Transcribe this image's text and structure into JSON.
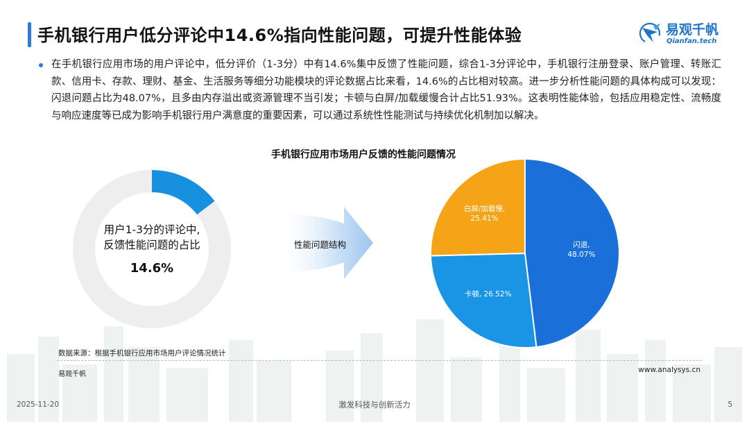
{
  "header": {
    "title": "手机银行用户低分评论中14.6%指向性能问题，可提升性能体验",
    "logo_cn": "易观千帆",
    "logo_en": "Qianfan.tech"
  },
  "body": {
    "paragraph": "在手机银行应用市场的用户评论中，低分评价（1-3分）中有14.6%集中反馈了性能问题，综合1-3分评论中，手机银行注册登录、账户管理、转账汇款、信用卡、存款、理财、基金、生活服务等细分功能模块的评论数据占比来看，14.6%的占比相对较高。进一步分析性能问题的具体构成可以发现：闪退问题占比为48.07%，且多由内存溢出或资源管理不当引发；卡顿与白屏/加载缓慢合计占比51.93%。这表明性能体验，包括应用稳定性、流畅度与响应速度等已成为影响手机银行用户满意度的重要因素，可以通过系统性性能测试与持续优化机制加以解决。"
  },
  "colors": {
    "accent": "#2e7be0",
    "donut_highlight": "#1890e0",
    "donut_track": "#eeeeee",
    "slice_crash": "#1a6fd9",
    "slice_lag": "#1a95e6",
    "slice_white": "#f5a417"
  },
  "chart_data": [
    {
      "type": "pie",
      "variant": "donut",
      "center_label_line1": "用户1-3分的评论中,",
      "center_label_line2": "反馈性能问题的占比",
      "center_value": "14.6%",
      "values": [
        14.6,
        85.4
      ]
    },
    {
      "type": "pie",
      "title": "手机银行应用市场用户反馈的性能问题情况",
      "slices": [
        {
          "label": "闪退",
          "value": 48.07,
          "value_text": "48.07%",
          "color": "#1a6fd9"
        },
        {
          "label": "卡顿",
          "value": 26.52,
          "value_text": "26.52%",
          "color": "#1a95e6"
        },
        {
          "label": "白屏/加载慢",
          "value": 25.41,
          "value_text": "25.41%",
          "color": "#f5a417"
        }
      ]
    }
  ],
  "arrow_label": "性能问题结构",
  "footer": {
    "source": "数据来源：根据手机银行应用市场用户评论情况统计",
    "brand": "易观千帆",
    "url": "www.analysys.cn",
    "date": "2025-11-20",
    "slogan": "激发科技与创新活力",
    "page": "5"
  }
}
